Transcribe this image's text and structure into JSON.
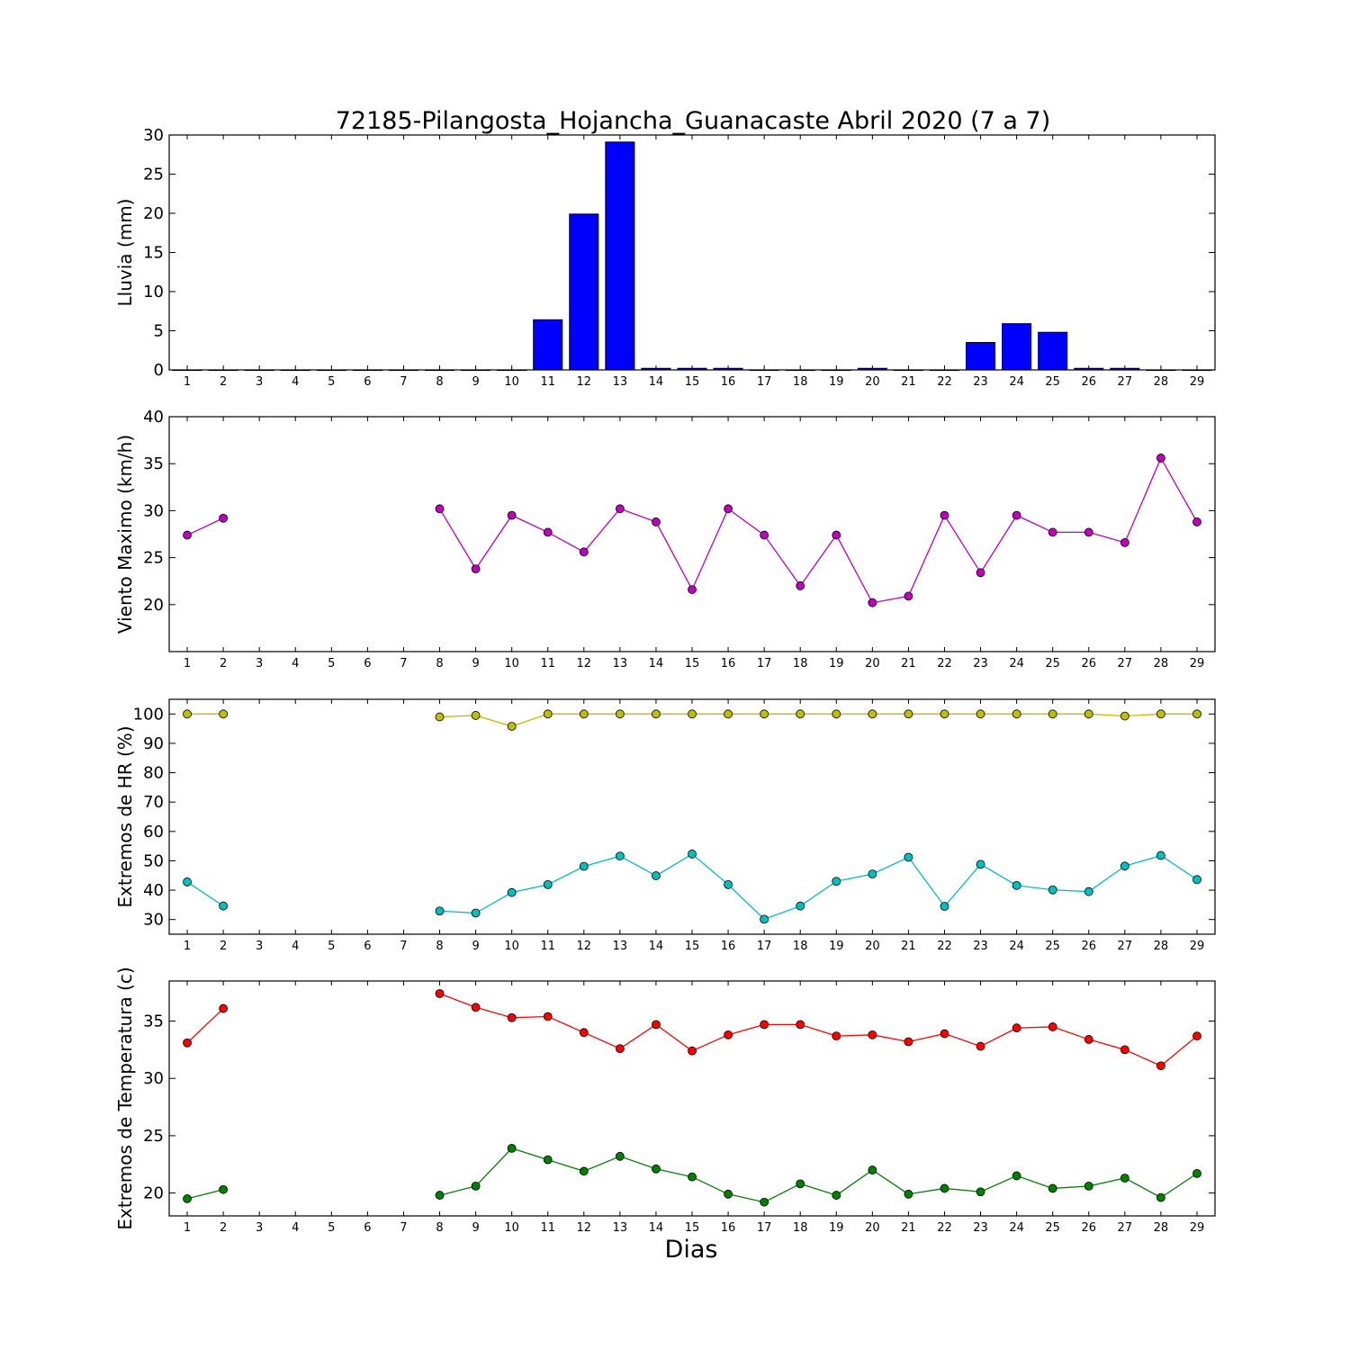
{
  "figure": {
    "title": "72185-Pilangosta_Hojancha_Guanacaste Abril 2020  (7 a 7)",
    "xlabel": "Dias"
  },
  "chart_data": [
    {
      "type": "bar",
      "ylabel": "Lluvia (mm)",
      "ylim": [
        0,
        30
      ],
      "yticks": [
        0,
        5,
        10,
        15,
        20,
        25,
        30
      ],
      "categories": [
        "1",
        "2",
        "3",
        "4",
        "5",
        "6",
        "7",
        "8",
        "9",
        "10",
        "11",
        "12",
        "13",
        "14",
        "15",
        "16",
        "17",
        "18",
        "19",
        "20",
        "21",
        "22",
        "23",
        "24",
        "25",
        "26",
        "27",
        "28",
        "29"
      ],
      "series": [
        {
          "color": "#0000ff",
          "values": [
            0,
            0,
            0,
            0,
            0,
            0,
            0,
            0,
            0,
            0,
            6.4,
            19.9,
            29.1,
            0.2,
            0.2,
            0.2,
            0,
            0,
            0,
            0.2,
            0,
            0,
            3.5,
            5.9,
            4.8,
            0.2,
            0.2,
            0,
            0
          ]
        }
      ],
      "grid": false
    },
    {
      "type": "line",
      "ylabel": "Viento Maximo (km/h)",
      "ylim": [
        15,
        40
      ],
      "yticks": [
        20,
        25,
        30,
        35,
        40
      ],
      "categories": [
        "1",
        "2",
        "3",
        "4",
        "5",
        "6",
        "7",
        "8",
        "9",
        "10",
        "11",
        "12",
        "13",
        "14",
        "15",
        "16",
        "17",
        "18",
        "19",
        "20",
        "21",
        "22",
        "23",
        "24",
        "25",
        "26",
        "27",
        "28",
        "29"
      ],
      "series": [
        {
          "color": "#bf00bf",
          "values": [
            27.4,
            29.2,
            null,
            null,
            null,
            null,
            null,
            30.2,
            23.8,
            29.5,
            27.7,
            25.6,
            30.2,
            28.8,
            21.6,
            30.2,
            27.4,
            22.0,
            27.4,
            20.2,
            20.9,
            29.5,
            23.4,
            29.5,
            27.7,
            27.7,
            26.6,
            35.6,
            28.8
          ]
        }
      ],
      "grid": false
    },
    {
      "type": "line",
      "ylabel": "Extremos de HR (%)",
      "ylim": [
        25,
        105
      ],
      "yticks": [
        30,
        40,
        50,
        60,
        70,
        80,
        90,
        100
      ],
      "categories": [
        "1",
        "2",
        "3",
        "4",
        "5",
        "6",
        "7",
        "8",
        "9",
        "10",
        "11",
        "12",
        "13",
        "14",
        "15",
        "16",
        "17",
        "18",
        "19",
        "20",
        "21",
        "22",
        "23",
        "24",
        "25",
        "26",
        "27",
        "28",
        "29"
      ],
      "series": [
        {
          "color": "#bfbf00",
          "values": [
            100,
            100,
            null,
            null,
            null,
            null,
            null,
            99,
            99.5,
            95.8,
            100,
            100,
            100,
            100,
            100,
            100,
            100,
            100,
            100,
            100,
            100,
            100,
            100,
            100,
            100,
            100,
            99.3,
            100,
            100
          ]
        },
        {
          "color": "#00bfbf",
          "values": [
            42.8,
            34.6,
            null,
            null,
            null,
            null,
            null,
            32.9,
            32.2,
            39.2,
            41.9,
            48.1,
            51.6,
            44.9,
            52.3,
            41.9,
            30.1,
            34.6,
            43.0,
            45.5,
            51.2,
            34.5,
            48.8,
            41.6,
            40.1,
            39.5,
            48.2,
            51.8,
            43.6
          ]
        }
      ],
      "grid": false
    },
    {
      "type": "line",
      "ylabel": "Extremos de Temperatura (c)",
      "ylim": [
        18,
        38.5
      ],
      "yticks": [
        20,
        25,
        30,
        35
      ],
      "categories": [
        "1",
        "2",
        "3",
        "4",
        "5",
        "6",
        "7",
        "8",
        "9",
        "10",
        "11",
        "12",
        "13",
        "14",
        "15",
        "16",
        "17",
        "18",
        "19",
        "20",
        "21",
        "22",
        "23",
        "24",
        "25",
        "26",
        "27",
        "28",
        "29"
      ],
      "series": [
        {
          "color": "#ff0000",
          "values": [
            33.1,
            36.1,
            null,
            null,
            null,
            null,
            null,
            37.4,
            36.2,
            35.3,
            35.4,
            34.0,
            32.6,
            34.7,
            32.4,
            33.8,
            34.7,
            34.7,
            33.7,
            33.8,
            33.2,
            33.9,
            32.8,
            34.4,
            34.5,
            33.4,
            32.5,
            31.1,
            33.7
          ]
        },
        {
          "color": "#008000",
          "values": [
            19.5,
            20.3,
            null,
            null,
            null,
            null,
            null,
            19.8,
            20.6,
            23.9,
            22.9,
            21.9,
            23.2,
            22.1,
            21.4,
            19.9,
            19.2,
            20.8,
            19.8,
            22.0,
            19.9,
            20.4,
            20.1,
            21.5,
            20.4,
            20.6,
            21.3,
            19.6,
            21.7
          ]
        }
      ],
      "grid": false
    }
  ]
}
